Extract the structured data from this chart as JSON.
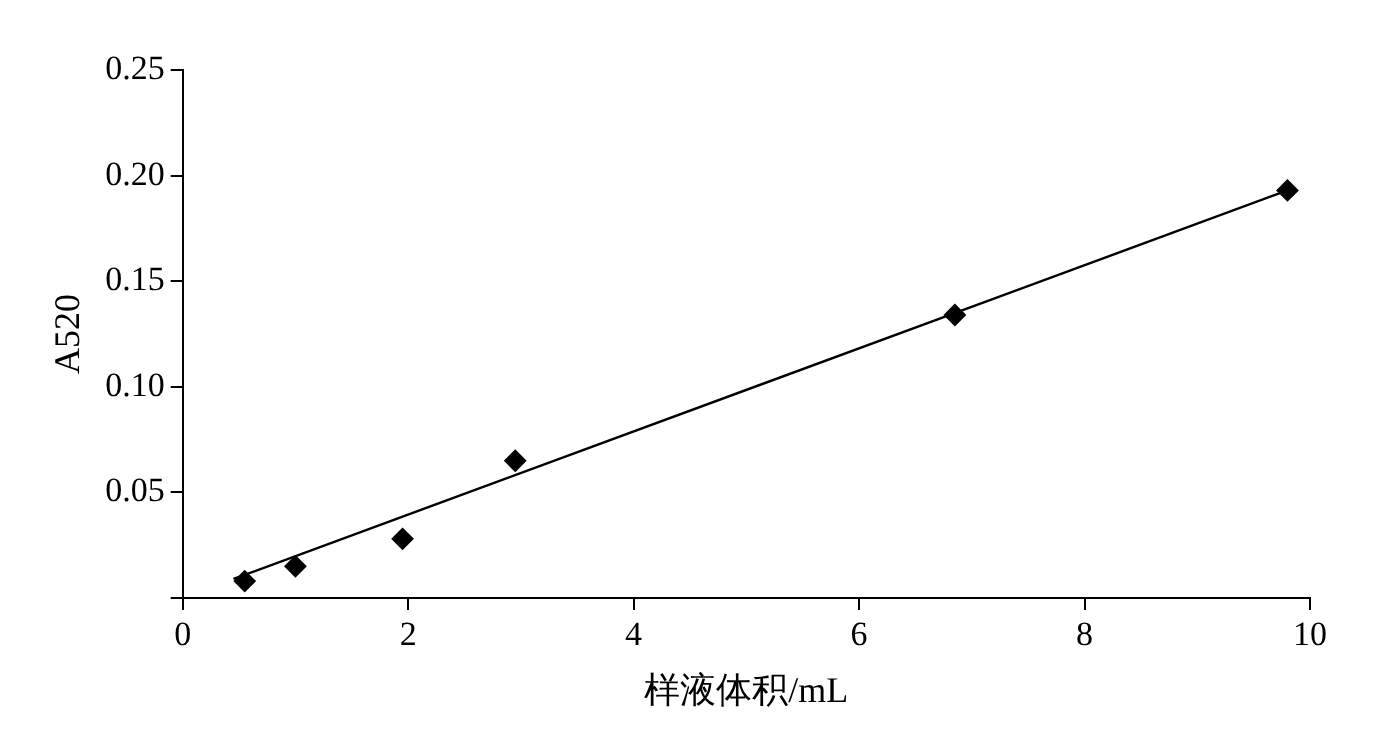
{
  "chart_data": {
    "type": "scatter",
    "xlabel": "样液体积/mL",
    "ylabel": "A520",
    "series": [
      {
        "color": "#000000",
        "marker": "diamond",
        "x": [
          0.55,
          1.0,
          1.95,
          2.95,
          6.85,
          9.8
        ],
        "values": [
          0.008,
          0.015,
          0.028,
          0.065,
          0.134,
          0.193
        ]
      },
      {
        "type": "line",
        "color": "#000000",
        "marker": "none",
        "line_style": "solid",
        "x": [
          0.45,
          9.8
        ],
        "values": [
          0.009,
          0.193
        ]
      }
    ],
    "xlim": [
      0,
      10
    ],
    "xticks": [
      0,
      2,
      4,
      6,
      8,
      10
    ],
    "ylim": [
      0,
      0.25
    ],
    "yticks": [
      {
        "value": 0,
        "label": null
      },
      0.05,
      {
        "value": 0.1,
        "label": "0.10"
      },
      0.15,
      {
        "value": 0.2,
        "label": "0.20"
      },
      0.25
    ],
    "grid": false,
    "legend": false
  }
}
